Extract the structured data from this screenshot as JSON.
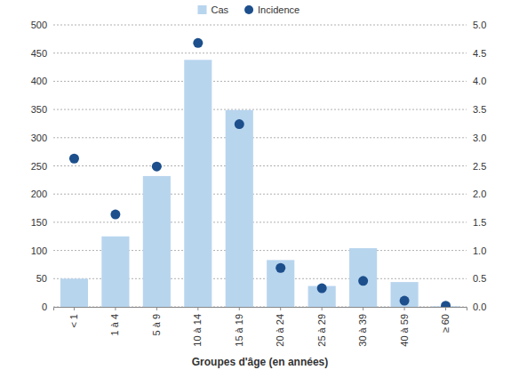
{
  "chart_data": {
    "type": "bar",
    "x_label": "Groupes d'âge (en années)",
    "categories": [
      "< 1",
      "1 à 4",
      "5 à 9",
      "10 à 14",
      "15 à 19",
      "20 à 24",
      "25 à 29",
      "30 à 39",
      "40 à 59",
      "≥ 60"
    ],
    "series": [
      {
        "name": "Cas",
        "type": "bar",
        "color": "#b8d5ee",
        "values": [
          50,
          125,
          232,
          438,
          349,
          83,
          37,
          104,
          44,
          1
        ]
      },
      {
        "name": "Incidence",
        "type": "scatter",
        "axis": "y2",
        "color": "#1c4f8c",
        "marker": "circle",
        "values": [
          2.63,
          1.64,
          2.49,
          4.68,
          3.24,
          0.69,
          0.33,
          0.46,
          0.11,
          0.02
        ]
      }
    ],
    "ylim": [
      0,
      500
    ],
    "yticks": [
      0,
      50,
      100,
      150,
      200,
      250,
      300,
      350,
      400,
      450,
      500
    ],
    "y2lim": [
      0,
      5
    ],
    "y2ticks": [
      {
        "value": 0,
        "label": "0.0"
      },
      0.5,
      {
        "value": 1,
        "label": "1.0"
      },
      1.5,
      {
        "value": 2,
        "label": "2.0"
      },
      2.5,
      {
        "value": 3,
        "label": "3.0"
      },
      3.5,
      {
        "value": 4,
        "label": "4.0"
      },
      4.5,
      {
        "value": 5,
        "label": "5.0"
      }
    ],
    "grid": true,
    "legend": "top"
  }
}
